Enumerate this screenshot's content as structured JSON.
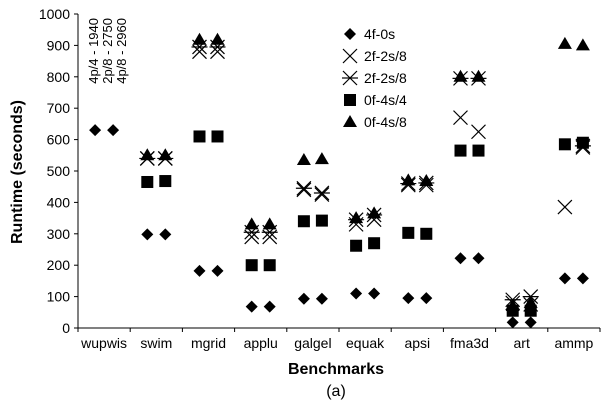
{
  "chart_data": {
    "type": "scatter",
    "xlabel": "Benchmarks",
    "ylabel": "Runtime (seconds)",
    "caption": "(a)",
    "ylim": [
      0,
      1000
    ],
    "yticks": [
      0,
      100,
      200,
      300,
      400,
      500,
      600,
      700,
      800,
      900,
      1000
    ],
    "grid": false,
    "legend_position": "top-center",
    "categories": [
      "wupwis",
      "swim",
      "mgrid",
      "applu",
      "galgel",
      "equak",
      "apsi",
      "fma3d",
      "art",
      "ammp"
    ],
    "series": [
      {
        "name": "4f-0s",
        "marker": "diamond",
        "color": "#000000",
        "values": [
          [
            630,
            630
          ],
          [
            298,
            298
          ],
          [
            182,
            182
          ],
          [
            68,
            68
          ],
          [
            93,
            93
          ],
          [
            110,
            110
          ],
          [
            95,
            95
          ],
          [
            222,
            222
          ],
          [
            18,
            18
          ],
          [
            158,
            158
          ]
        ]
      },
      {
        "name": "2f-2s/8",
        "marker": "x",
        "color": "#000000",
        "values": [
          [
            null,
            null
          ],
          [
            540,
            540
          ],
          [
            880,
            880
          ],
          [
            290,
            290
          ],
          [
            440,
            425
          ],
          [
            330,
            345
          ],
          [
            455,
            455
          ],
          [
            670,
            625
          ],
          [
            80,
            75
          ],
          [
            385,
            575
          ]
        ]
      },
      {
        "name": "2f-2s/8",
        "marker": "star",
        "color": "#000000",
        "values": [
          [
            null,
            null
          ],
          [
            540,
            540
          ],
          [
            895,
            895
          ],
          [
            305,
            305
          ],
          [
            445,
            430
          ],
          [
            345,
            360
          ],
          [
            460,
            462
          ],
          [
            795,
            795
          ],
          [
            90,
            100
          ],
          [
            null,
            580
          ]
        ]
      },
      {
        "name": "0f-4s/4",
        "marker": "square",
        "color": "#000000",
        "values": [
          [
            null,
            null
          ],
          [
            465,
            468
          ],
          [
            610,
            610
          ],
          [
            200,
            200
          ],
          [
            340,
            342
          ],
          [
            262,
            270
          ],
          [
            303,
            300
          ],
          [
            565,
            565
          ],
          [
            55,
            55
          ],
          [
            585,
            590
          ]
        ]
      },
      {
        "name": "0f-4s/8",
        "marker": "triangle",
        "color": "#000000",
        "values": [
          [
            null,
            null
          ],
          [
            550,
            550
          ],
          [
            918,
            918
          ],
          [
            330,
            330
          ],
          [
            535,
            538
          ],
          [
            350,
            365
          ],
          [
            470,
            468
          ],
          [
            800,
            800
          ],
          [
            70,
            80
          ],
          [
            905,
            900
          ]
        ]
      }
    ],
    "annotations": [
      "4p/4 - 1940",
      "2p/8 - 2750",
      "4p/8 - 2960"
    ]
  }
}
